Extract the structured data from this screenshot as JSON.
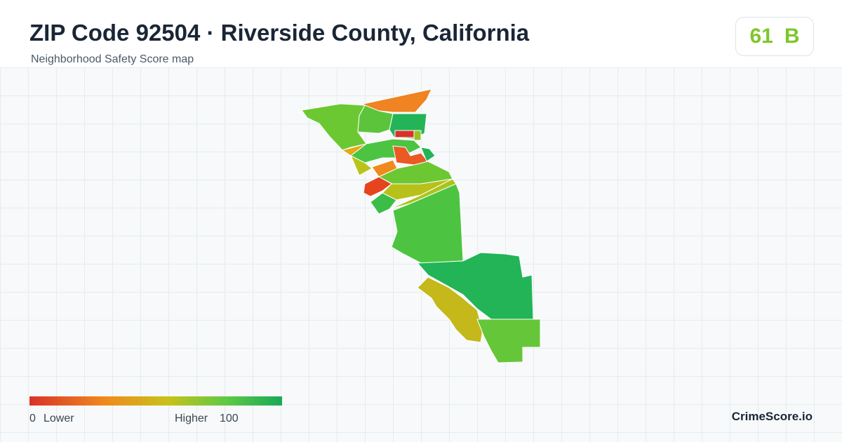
{
  "header": {
    "title": "ZIP Code 92504 · Riverside County, California",
    "subtitle": "Neighborhood Safety Score map"
  },
  "badge": {
    "score": "61",
    "grade": "B"
  },
  "legend": {
    "min": "0",
    "min_label": "Lower",
    "max_label": "Higher",
    "max": "100"
  },
  "brand": "CrimeScore.io"
}
